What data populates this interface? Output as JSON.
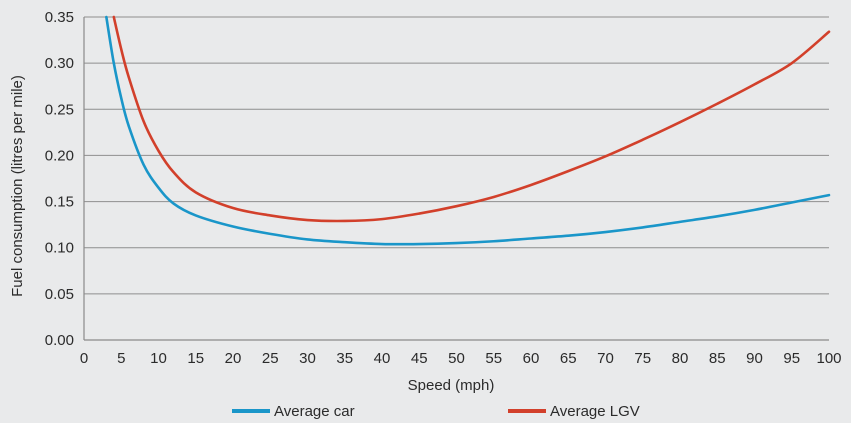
{
  "chart_data": {
    "type": "line",
    "title": "",
    "xlabel": "Speed (mph)",
    "ylabel": "Fuel consumption (litres per mile)",
    "xlim": [
      0,
      100
    ],
    "ylim": [
      0,
      0.35
    ],
    "x_ticks": [
      0,
      5,
      10,
      15,
      20,
      25,
      30,
      35,
      40,
      45,
      50,
      55,
      60,
      65,
      70,
      75,
      80,
      85,
      90,
      95,
      100
    ],
    "x_tick_labels": [
      "0",
      "5",
      "10",
      "15",
      "20",
      "25",
      "30",
      "35",
      "40",
      "45",
      "50",
      "55",
      "60",
      "65",
      "70",
      "75",
      "80",
      "85",
      "90",
      "95",
      "100"
    ],
    "y_ticks": [
      0,
      0.05,
      0.1,
      0.15,
      0.2,
      0.25,
      0.3,
      0.35
    ],
    "y_tick_labels": [
      "0.00",
      "0.05",
      "0.10",
      "0.15",
      "0.20",
      "0.25",
      "0.30",
      "0.35"
    ],
    "grid": "horizontal",
    "legend_position": "bottom",
    "series": [
      {
        "name": "Average car",
        "color": "#1a96c9",
        "x": [
          3,
          4,
          5,
          6,
          8,
          10,
          12,
          15,
          20,
          25,
          30,
          35,
          40,
          45,
          50,
          55,
          60,
          65,
          70,
          75,
          80,
          85,
          90,
          95,
          100
        ],
        "y": [
          0.35,
          0.3,
          0.262,
          0.232,
          0.19,
          0.165,
          0.148,
          0.135,
          0.123,
          0.115,
          0.109,
          0.106,
          0.104,
          0.104,
          0.105,
          0.107,
          0.11,
          0.113,
          0.117,
          0.122,
          0.128,
          0.134,
          0.141,
          0.149,
          0.157
        ]
      },
      {
        "name": "Average LGV",
        "color": "#d2402b",
        "x": [
          4,
          5,
          6,
          8,
          10,
          12,
          15,
          20,
          25,
          30,
          35,
          40,
          45,
          50,
          55,
          60,
          65,
          70,
          75,
          80,
          85,
          90,
          95,
          100
        ],
        "y": [
          0.35,
          0.315,
          0.285,
          0.237,
          0.205,
          0.182,
          0.16,
          0.143,
          0.135,
          0.13,
          0.129,
          0.131,
          0.137,
          0.145,
          0.155,
          0.168,
          0.183,
          0.199,
          0.217,
          0.236,
          0.256,
          0.277,
          0.3,
          0.334
        ]
      }
    ]
  }
}
